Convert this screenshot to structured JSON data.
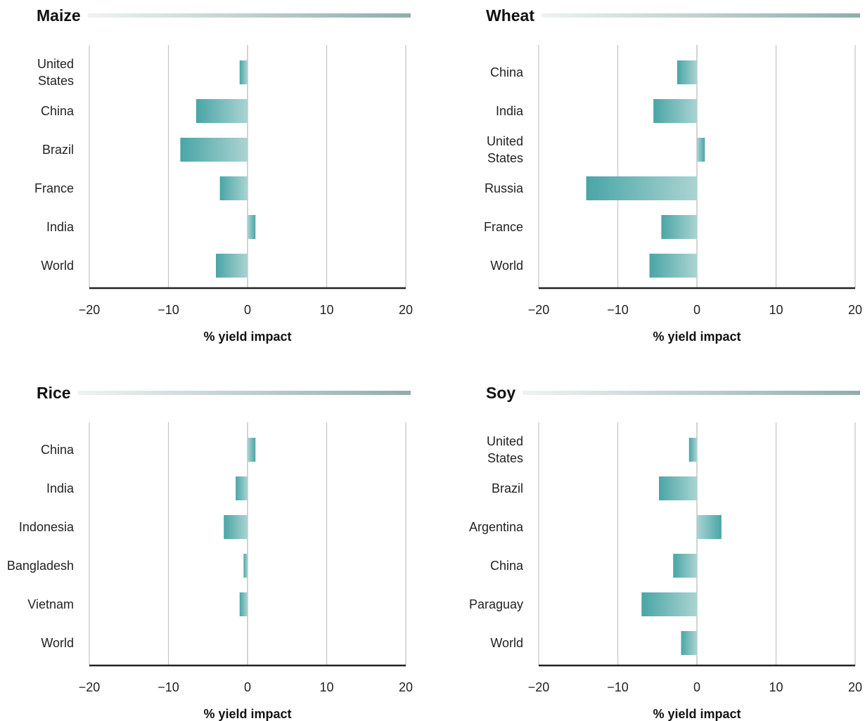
{
  "colors": {
    "bar_dark": "#4aa5a6",
    "bar_light": "#aad4d2",
    "gridline": "#c4c4c4",
    "zero_line": "#b8b8b8",
    "axis_line": "#222222",
    "title_rule_light": "#eef3f3",
    "title_rule_dark": "#8fadab"
  },
  "chart_data": [
    {
      "type": "bar",
      "orientation": "horizontal",
      "title": "Maize",
      "categories": [
        "United States",
        "China",
        "Brazil",
        "France",
        "India",
        "World"
      ],
      "values": [
        -1,
        -6.5,
        -8.5,
        -3.5,
        1,
        -4
      ],
      "xlim": [
        -20,
        20
      ],
      "xticks": [
        -20,
        -10,
        0,
        10,
        20
      ],
      "xtick_labels": [
        "−20",
        "−10",
        "0",
        "10",
        "20"
      ],
      "xlabel": "% yield impact",
      "ylabel": "",
      "grid": true
    },
    {
      "type": "bar",
      "orientation": "horizontal",
      "title": "Wheat",
      "categories": [
        "China",
        "India",
        "United States",
        "Russia",
        "France",
        "World"
      ],
      "values": [
        -2.5,
        -5.5,
        1,
        -14,
        -4.5,
        -6
      ],
      "xlim": [
        -20,
        20
      ],
      "xticks": [
        -20,
        -10,
        0,
        10,
        20
      ],
      "xtick_labels": [
        "−20",
        "−10",
        "0",
        "10",
        "20"
      ],
      "xlabel": "% yield impact",
      "ylabel": "",
      "grid": true
    },
    {
      "type": "bar",
      "orientation": "horizontal",
      "title": "Rice",
      "categories": [
        "China",
        "India",
        "Indonesia",
        "Bangladesh",
        "Vietnam",
        "World"
      ],
      "values": [
        1,
        -1.5,
        -3,
        -0.5,
        -1,
        0
      ],
      "xlim": [
        -20,
        20
      ],
      "xticks": [
        -20,
        -10,
        0,
        10,
        20
      ],
      "xtick_labels": [
        "−20",
        "−10",
        "0",
        "10",
        "20"
      ],
      "xlabel": "% yield impact",
      "ylabel": "",
      "grid": true
    },
    {
      "type": "bar",
      "orientation": "horizontal",
      "title": "Soy",
      "categories": [
        "United States",
        "Brazil",
        "Argentina",
        "China",
        "Paraguay",
        "World"
      ],
      "values": [
        -1,
        -4.8,
        3.1,
        -3,
        -7,
        -2
      ],
      "xlim": [
        -20,
        20
      ],
      "xticks": [
        -20,
        -10,
        0,
        10,
        20
      ],
      "xtick_labels": [
        "−20",
        "−10",
        "0",
        "10",
        "20"
      ],
      "xlabel": "% yield impact",
      "ylabel": "",
      "grid": true
    }
  ]
}
